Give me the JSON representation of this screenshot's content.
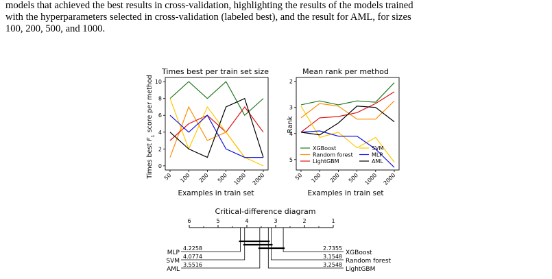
{
  "text": {
    "lines": [
      "models that achieved the best results in cross-validation, highlighting the results of the models trained",
      "with the hyperparameters selected in cross-validation (labeled best), and the result for AML, for sizes",
      "100, 200, 500, and 1000."
    ]
  },
  "chart_data": [
    {
      "type": "line",
      "title": "Times best per train set size",
      "xlabel": "Examples in train set",
      "ylabel_prefix": "Times best ",
      "ylabel_var": "F",
      "ylabel_sub": "1",
      "ylabel_suffix": " score per method",
      "x": [
        "50",
        "100",
        "200",
        "500",
        "1000",
        "2000"
      ],
      "yticks": [
        "0",
        "2",
        "4",
        "6",
        "8",
        "10"
      ],
      "ylim": [
        -0.5,
        10.5
      ],
      "series": [
        {
          "key": "xgb",
          "values": [
            8,
            10,
            8,
            10,
            6,
            8
          ]
        },
        {
          "key": "rf",
          "values": [
            1,
            7,
            3,
            4,
            1,
            1
          ]
        },
        {
          "key": "lgbm",
          "values": [
            3,
            5,
            6,
            4,
            7,
            4
          ]
        },
        {
          "key": "svm",
          "values": [
            8,
            2,
            7,
            4,
            1,
            0
          ]
        },
        {
          "key": "mlp",
          "values": [
            6,
            4,
            6,
            2,
            1,
            1
          ]
        },
        {
          "key": "aml",
          "values": [
            4,
            2,
            1,
            7,
            8,
            1
          ]
        }
      ]
    },
    {
      "type": "line",
      "title": "Mean rank per method",
      "xlabel": "Examples in train set",
      "ylabel": "Rank",
      "x": [
        "50",
        "100",
        "200",
        "500",
        "1000",
        "2000"
      ],
      "yticks": [
        "2",
        "3",
        "4",
        "5"
      ],
      "ylim": [
        1.85,
        5.4
      ],
      "y_inverted": true,
      "legend_position": "lower-center",
      "legend": [
        {
          "key": "xgb",
          "label": "XGBoost"
        },
        {
          "key": "svm",
          "label": "SVM"
        },
        {
          "key": "rf",
          "label": "Random forest"
        },
        {
          "key": "mlp",
          "label": "MLP"
        },
        {
          "key": "lgbm",
          "label": "LightGBM"
        },
        {
          "key": "aml",
          "label": "AML"
        }
      ],
      "series": [
        {
          "key": "xgb",
          "values": [
            2.9,
            2.75,
            2.9,
            2.75,
            2.8,
            2.05
          ]
        },
        {
          "key": "rf",
          "values": [
            3.4,
            2.85,
            2.95,
            3.45,
            3.45,
            2.75
          ]
        },
        {
          "key": "lgbm",
          "values": [
            3.95,
            3.4,
            3.35,
            3.2,
            2.85,
            2.4
          ]
        },
        {
          "key": "svm",
          "values": [
            2.95,
            4.15,
            3.95,
            4.55,
            4.15,
            5.1
          ]
        },
        {
          "key": "mlp",
          "values": [
            3.95,
            3.9,
            4.1,
            4.1,
            4.6,
            5.3
          ]
        },
        {
          "key": "aml",
          "values": [
            3.95,
            4.05,
            3.6,
            2.95,
            3.0,
            3.55
          ]
        }
      ]
    },
    {
      "type": "critical-difference",
      "title": "Critical-difference diagram",
      "axis_ticks": [
        "6",
        "5",
        "4",
        "3",
        "2",
        "1"
      ],
      "axis_range": [
        6,
        1
      ],
      "methods_left": [
        {
          "name": "MLP",
          "rank": 4.2258,
          "label": "4.2258"
        },
        {
          "name": "SVM",
          "rank": 4.0774,
          "label": "4.0774"
        },
        {
          "name": "AML",
          "rank": 3.5516,
          "label": "3.5516"
        }
      ],
      "methods_right": [
        {
          "name": "XGBoost",
          "rank": 2.7355,
          "label": "2.7355"
        },
        {
          "name": "Random forest",
          "rank": 3.1548,
          "label": "3.1548"
        },
        {
          "name": "LightGBM",
          "rank": 3.2548,
          "label": "3.2548"
        }
      ],
      "cliques": [
        [
          4.2258,
          3.2548
        ],
        [
          4.0774,
          3.1548
        ],
        [
          3.5516,
          2.7355
        ]
      ]
    }
  ],
  "colors": {
    "xgb": "#1f7a1f",
    "rf": "#ff8c00",
    "lgbm": "#e01010",
    "svm": "#ffc800",
    "mlp": "#1414e6",
    "aml": "#000000"
  }
}
